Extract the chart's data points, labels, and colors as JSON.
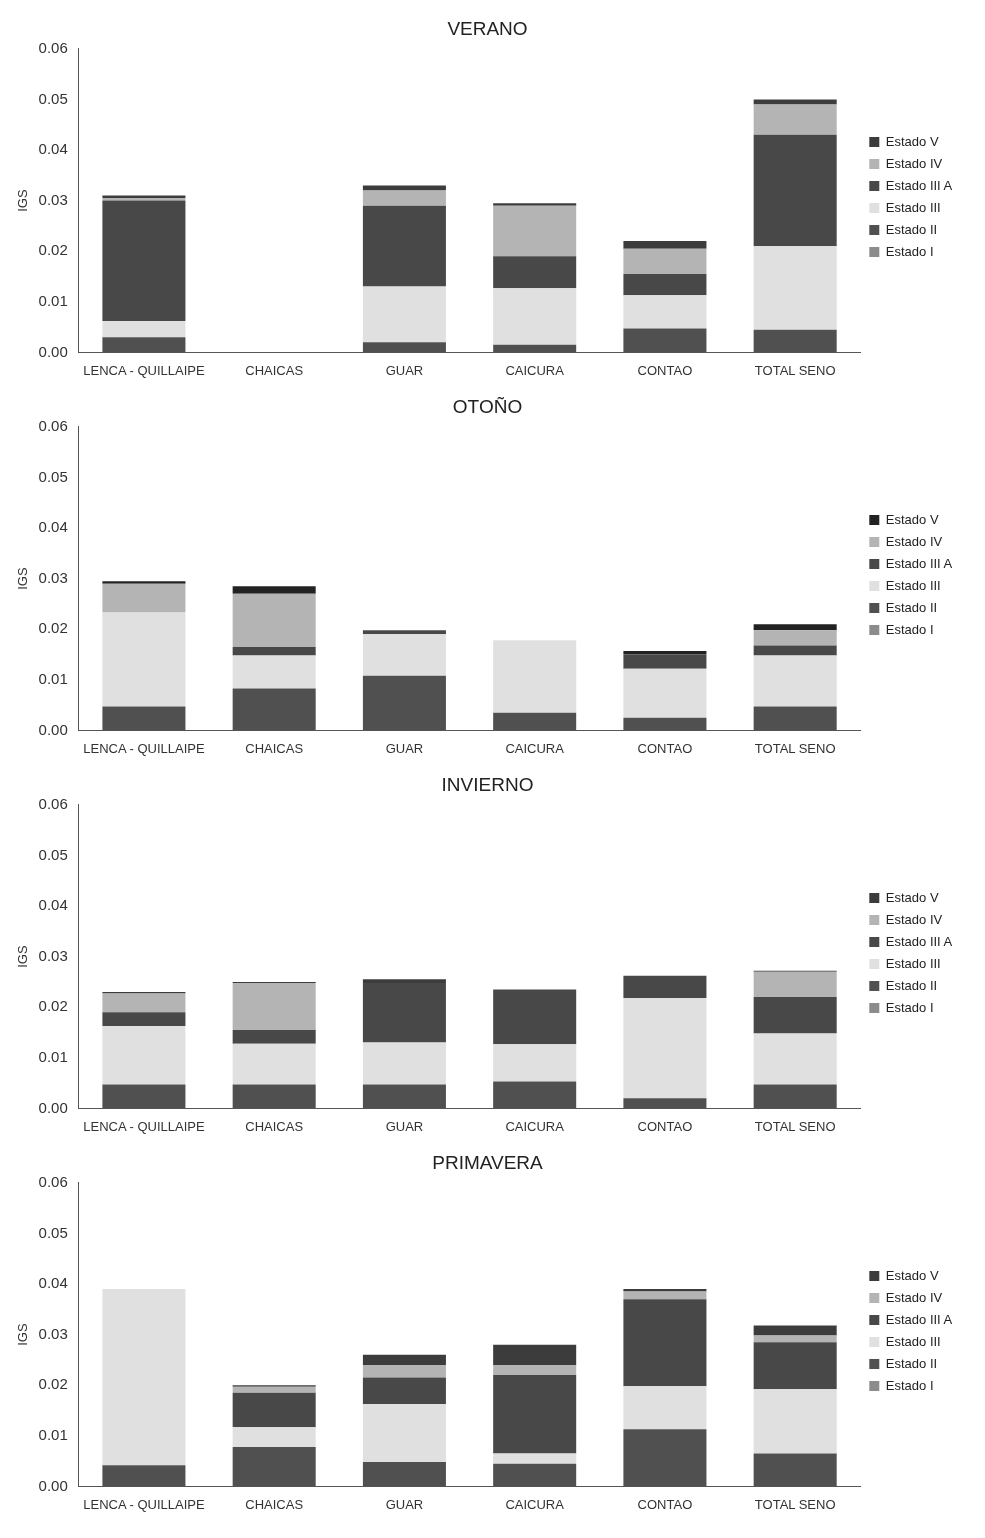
{
  "chart_data": [
    {
      "type": "bar",
      "title": "VERANO",
      "ylabel": "IGS",
      "stacked": true,
      "legend": "right",
      "categories": [
        "LENCA - QUILLAIPE",
        "CHAICAS",
        "GUAR",
        "CAICURA",
        "CONTAO",
        "TOTAL SENO"
      ],
      "ylim": [
        0,
        0.06
      ],
      "yticks": [
        {
          "value": 0,
          "label": "0.00"
        },
        {
          "value": 0.01,
          "label": "0.01"
        },
        {
          "value": 0.02,
          "label": "0.02"
        },
        {
          "value": 0.03,
          "label": "0.03"
        },
        {
          "value": 0.04,
          "label": "0.04"
        },
        {
          "value": 0.05,
          "label": "0.05"
        },
        {
          "value": 0.06,
          "label": "0.06"
        }
      ],
      "series": [
        {
          "name": "Estado I",
          "color": "#8c8c8c",
          "values": [
            0,
            0,
            0,
            0,
            0,
            0
          ]
        },
        {
          "name": "Estado II",
          "color": "#505050",
          "values": [
            0.003,
            0,
            0.002,
            0.0015,
            0.0047,
            0.0045
          ]
        },
        {
          "name": "Estado III",
          "color": "#e0e0e0",
          "values": [
            0.0032,
            0,
            0.011,
            0.0112,
            0.0066,
            0.0165
          ]
        },
        {
          "name": "Estado III A",
          "color": "#484848",
          "values": [
            0.0238,
            0,
            0.016,
            0.0063,
            0.0042,
            0.022
          ]
        },
        {
          "name": "Estado IV",
          "color": "#b4b4b4",
          "values": [
            0.0005,
            0,
            0.003,
            0.01,
            0.005,
            0.006
          ]
        },
        {
          "name": "Estado V",
          "color": "#3c3c3c",
          "values": [
            0.0005,
            0,
            0.001,
            0.0005,
            0.0015,
            0.001
          ]
        }
      ]
    },
    {
      "type": "bar",
      "title": "OTOÑO",
      "ylabel": "IGS",
      "stacked": true,
      "legend": "right",
      "categories": [
        "LENCA - QUILLAIPE",
        "CHAICAS",
        "GUAR",
        "CAICURA",
        "CONTAO",
        "TOTAL SENO"
      ],
      "ylim": [
        0,
        0.06
      ],
      "yticks": [
        {
          "value": 0,
          "label": "0.00"
        },
        {
          "value": 0.01,
          "label": "0.01"
        },
        {
          "value": 0.02,
          "label": "0.02"
        },
        {
          "value": 0.03,
          "label": "0.03"
        },
        {
          "value": 0.04,
          "label": "0.04"
        },
        {
          "value": 0.05,
          "label": "0.05"
        },
        {
          "value": 0.06,
          "label": "0.06"
        }
      ],
      "series": [
        {
          "name": "Estado I",
          "color": "#8c8c8c",
          "values": [
            0,
            0,
            0,
            0,
            0,
            0
          ]
        },
        {
          "name": "Estado II",
          "color": "#505050",
          "values": [
            0.0047,
            0.0083,
            0.0108,
            0.0035,
            0.0025,
            0.0047
          ]
        },
        {
          "name": "Estado III",
          "color": "#e0e0e0",
          "values": [
            0.0186,
            0.0065,
            0.0082,
            0.0143,
            0.0097,
            0.0101
          ]
        },
        {
          "name": "Estado III A",
          "color": "#484848",
          "values": [
            0,
            0.0017,
            0.0008,
            0,
            0.0028,
            0.002
          ]
        },
        {
          "name": "Estado IV",
          "color": "#b4b4b4",
          "values": [
            0.0057,
            0.0105,
            0,
            0,
            0,
            0.003
          ]
        },
        {
          "name": "Estado V",
          "color": "#222222",
          "values": [
            0.0005,
            0.0015,
            0,
            0,
            0.0007,
            0.0012
          ]
        }
      ]
    },
    {
      "type": "bar",
      "title": "INVIERNO",
      "ylabel": "IGS",
      "stacked": true,
      "legend": "right",
      "categories": [
        "LENCA - QUILLAIPE",
        "CHAICAS",
        "GUAR",
        "CAICURA",
        "CONTAO",
        "TOTAL SENO"
      ],
      "ylim": [
        0,
        0.06
      ],
      "yticks": [
        {
          "value": 0,
          "label": "0.00"
        },
        {
          "value": 0.01,
          "label": "0.01"
        },
        {
          "value": 0.02,
          "label": "0.02"
        },
        {
          "value": 0.03,
          "label": "0.03"
        },
        {
          "value": 0.04,
          "label": "0.04"
        },
        {
          "value": 0.05,
          "label": "0.05"
        },
        {
          "value": 0.06,
          "label": "0.06"
        }
      ],
      "series": [
        {
          "name": "Estado I",
          "color": "#8c8c8c",
          "values": [
            0,
            0,
            0,
            0,
            0,
            0
          ]
        },
        {
          "name": "Estado II",
          "color": "#505050",
          "values": [
            0.0047,
            0.0047,
            0.0047,
            0.0053,
            0.002,
            0.0047
          ]
        },
        {
          "name": "Estado III",
          "color": "#e0e0e0",
          "values": [
            0.0116,
            0.0081,
            0.0083,
            0.0074,
            0.0198,
            0.0101
          ]
        },
        {
          "name": "Estado III A",
          "color": "#484848",
          "values": [
            0.0027,
            0.0027,
            0.0118,
            0.0108,
            0.0044,
            0.0072
          ]
        },
        {
          "name": "Estado IV",
          "color": "#b4b4b4",
          "values": [
            0.0037,
            0.0093,
            0,
            0,
            0,
            0.005
          ]
        },
        {
          "name": "Estado V",
          "color": "#3c3c3c",
          "values": [
            0.0003,
            0.0002,
            0.0007,
            0,
            0,
            0.0002
          ]
        }
      ]
    },
    {
      "type": "bar",
      "title": "PRIMAVERA",
      "ylabel": "IGS",
      "stacked": true,
      "legend": "right",
      "categories": [
        "LENCA - QUILLAIPE",
        "CHAICAS",
        "GUAR",
        "CAICURA",
        "CONTAO",
        "TOTAL SENO"
      ],
      "ylim": [
        0,
        0.06
      ],
      "yticks": [
        {
          "value": 0,
          "label": "0.00"
        },
        {
          "value": 0.01,
          "label": "0.01"
        },
        {
          "value": 0.02,
          "label": "0.02"
        },
        {
          "value": 0.03,
          "label": "0.03"
        },
        {
          "value": 0.04,
          "label": "0.04"
        },
        {
          "value": 0.05,
          "label": "0.05"
        },
        {
          "value": 0.06,
          "label": "0.06"
        }
      ],
      "series": [
        {
          "name": "Estado I",
          "color": "#8c8c8c",
          "values": [
            0,
            0,
            0,
            0,
            0,
            0
          ]
        },
        {
          "name": "Estado II",
          "color": "#505050",
          "values": [
            0.0042,
            0.0078,
            0.0048,
            0.0045,
            0.0113,
            0.0065
          ]
        },
        {
          "name": "Estado III",
          "color": "#e0e0e0",
          "values": [
            0.0348,
            0.0039,
            0.0115,
            0.002,
            0.0085,
            0.0127
          ]
        },
        {
          "name": "Estado III A",
          "color": "#484848",
          "values": [
            0,
            0.0068,
            0.0052,
            0.0155,
            0.0172,
            0.0093
          ]
        },
        {
          "name": "Estado IV",
          "color": "#b4b4b4",
          "values": [
            0,
            0.0012,
            0.0025,
            0.002,
            0.0015,
            0.0013
          ]
        },
        {
          "name": "Estado V",
          "color": "#3c3c3c",
          "values": [
            0,
            0.0003,
            0.002,
            0.004,
            0.0005,
            0.002
          ]
        }
      ]
    }
  ]
}
